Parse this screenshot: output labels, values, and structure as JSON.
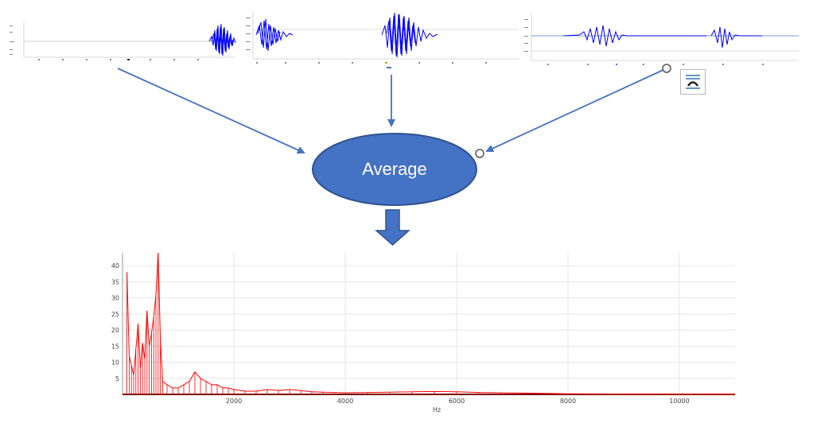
{
  "colors": {
    "accent": "#4472c4",
    "node_fill": "#4472c4",
    "node_stroke": "#2f528f",
    "waveform": "#0000ff",
    "spectrum": "#ff0000"
  },
  "diagram": {
    "node_label": "Average"
  },
  "icons": {
    "layout_options": "layout-options-icon",
    "resize_handle": "resize-handle-icon"
  },
  "chart_data": {
    "type": "line",
    "title": "",
    "xlabel": "Hz",
    "ylabel": "",
    "xlim": [
      0,
      11000
    ],
    "ylim": [
      0,
      44
    ],
    "x_ticks": [
      2000,
      4000,
      6000,
      8000,
      10000
    ],
    "y_ticks": [
      5,
      10,
      15,
      20,
      25,
      30,
      35,
      40
    ],
    "grid": true,
    "series": [
      {
        "color": "#ff0000",
        "x": [
          80,
          120,
          160,
          200,
          240,
          280,
          320,
          360,
          400,
          440,
          480,
          520,
          560,
          600,
          640,
          680,
          720,
          800,
          900,
          1000,
          1100,
          1200,
          1300,
          1400,
          1500,
          1600,
          1700,
          1800,
          1900,
          2000,
          2200,
          2400,
          2600,
          2800,
          3000,
          3200,
          3400,
          3600,
          3800,
          4000,
          4400,
          4800,
          5200,
          5600,
          6000,
          6400,
          6800,
          7200,
          7600,
          8000,
          9000,
          10000,
          11000
        ],
        "y": [
          38,
          12,
          9,
          6,
          14,
          22,
          8,
          16,
          11,
          26,
          15,
          19,
          24,
          31,
          44,
          17,
          4,
          3,
          2,
          2,
          3,
          4,
          7,
          5,
          4,
          3,
          3,
          2,
          2,
          1.5,
          1,
          1,
          1.5,
          1.2,
          1.5,
          1.2,
          0.8,
          0.7,
          0.6,
          0.5,
          0.6,
          0.7,
          0.8,
          0.9,
          0.8,
          0.6,
          0.5,
          0.4,
          0.3,
          0.2,
          0.1,
          0.1,
          0.1
        ]
      }
    ]
  }
}
